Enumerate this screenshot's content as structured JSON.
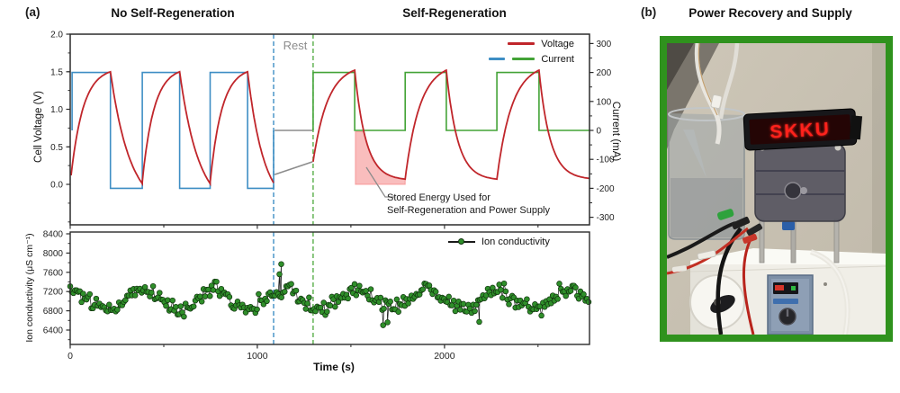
{
  "panel_a": {
    "label": "(a)",
    "titles": {
      "left": "No Self-Regeneration",
      "right": "Self-Regeneration"
    },
    "rest_label": "Rest",
    "legend": {
      "voltage": "Voltage",
      "current": "Current",
      "ion": "Ion conductivity"
    },
    "axis_labels": {
      "cell_voltage": "Cell Voltage (V)",
      "current": "Current (mA)",
      "ion_conductivity": "Ion conductivity (μS cm⁻¹)",
      "time": "Time (s)"
    },
    "annotation_line1": "Stored Energy Used for",
    "annotation_line2": "Self-Regeneration and Power Supply"
  },
  "panel_b": {
    "label": "(b)",
    "title": "Power Recovery and Supply",
    "photo": {
      "led_text": "SKKU"
    }
  },
  "colors": {
    "voltage_red": "#c0262b",
    "current_blue": "#3e8ec4",
    "current_green": "#43a337",
    "rest_gray": "#8c8c8c",
    "dashed_blue": "#3e8ec4",
    "dashed_green": "#57ae48",
    "shade_pink": "#f47c7c",
    "scatter_green": "#2f8f2a",
    "scatter_edge": "#11330e",
    "axis_dark": "#2b2b2b",
    "photo_border_green": "#2f921d"
  },
  "chart_data": [
    {
      "id": "voltage-current",
      "type": "line",
      "x_range_s": [
        0,
        2775
      ],
      "left_axis": {
        "label": "Cell Voltage (V)",
        "ticks": [
          2.0,
          1.5,
          1.0,
          0.5,
          0.0
        ],
        "minor_step": 0.25,
        "range": [
          -0.54,
          2.0
        ]
      },
      "right_axis": {
        "label": "Current (mA)",
        "ticks": [
          300,
          200,
          100,
          0,
          -100,
          -200,
          -300
        ],
        "minor_step": 50,
        "range": [
          -326,
          332
        ]
      },
      "legend": [
        {
          "label": "Voltage",
          "swatch": "red-line"
        },
        {
          "label": "Current",
          "swatch": "blue-green-line"
        }
      ],
      "rest": {
        "label": "Rest",
        "window_s": [
          1087,
          1298
        ],
        "voltage_v": {
          "t0": 1092,
          "t1": 1295,
          "v0": 0.13,
          "v1": 0.3
        },
        "current_mA": 0
      },
      "series": {
        "current_no_regen_mA": [
          [
            10,
            0
          ],
          [
            10,
            200
          ],
          [
            215,
            200
          ],
          [
            215,
            -200
          ],
          [
            385,
            -200
          ],
          [
            385,
            200
          ],
          [
            585,
            200
          ],
          [
            585,
            -200
          ],
          [
            748,
            -200
          ],
          [
            748,
            200
          ],
          [
            948,
            200
          ],
          [
            948,
            -200
          ],
          [
            1087,
            -200
          ],
          [
            1087,
            0
          ]
        ],
        "current_regen_mA": [
          [
            1298,
            0
          ],
          [
            1298,
            200
          ],
          [
            1520,
            200
          ],
          [
            1520,
            0
          ],
          [
            1790,
            0
          ],
          [
            1790,
            200
          ],
          [
            2010,
            200
          ],
          [
            2010,
            0
          ],
          [
            2280,
            0
          ],
          [
            2280,
            200
          ],
          [
            2505,
            200
          ],
          [
            2505,
            0
          ],
          [
            2775,
            0
          ]
        ],
        "voltage_no_regen_phases": [
          {
            "t0": 5,
            "t1": 215,
            "v0": 0.12,
            "v1": 1.5,
            "k": 3.2
          },
          {
            "t0": 215,
            "t1": 385,
            "v0": 1.5,
            "v1": 0.01,
            "k": 1.6
          },
          {
            "t0": 385,
            "t1": 585,
            "v0": 0.03,
            "v1": 1.5,
            "k": 3.2
          },
          {
            "t0": 585,
            "t1": 748,
            "v0": 1.5,
            "v1": 0.01,
            "k": 1.6
          },
          {
            "t0": 748,
            "t1": 948,
            "v0": 0.03,
            "v1": 1.5,
            "k": 3.2
          },
          {
            "t0": 948,
            "t1": 1087,
            "v0": 1.5,
            "v1": 0.02,
            "k": 1.6
          }
        ],
        "voltage_regen_phases": [
          {
            "t0": 1298,
            "t1": 1520,
            "v0": 0.3,
            "v1": 1.52,
            "k": 2.8
          },
          {
            "t0": 1520,
            "t1": 1790,
            "v0": 1.52,
            "v1": 0.07,
            "k": 4.5
          },
          {
            "t0": 1790,
            "t1": 2010,
            "v0": 0.07,
            "v1": 1.52,
            "k": 2.8
          },
          {
            "t0": 2010,
            "t1": 2280,
            "v0": 1.52,
            "v1": 0.07,
            "k": 4.5
          },
          {
            "t0": 2280,
            "t1": 2505,
            "v0": 0.07,
            "v1": 1.52,
            "k": 2.8
          },
          {
            "t0": 2505,
            "t1": 2775,
            "v0": 1.52,
            "v1": 0.08,
            "k": 4.5
          }
        ]
      },
      "shaded_region": {
        "t0": 1524,
        "t1": 1790,
        "cap_v": 0.7,
        "baseline_v": 0.0,
        "annotation": [
          "Stored Energy Used for",
          "Self-Regeneration and Power Supply"
        ]
      }
    },
    {
      "id": "ion-conductivity",
      "type": "scatter",
      "ylabel": "Ion conductivity (μS cm⁻¹)",
      "xlabel": "Time (s)",
      "y_ticks": [
        8400,
        8000,
        7600,
        7200,
        6800,
        6400
      ],
      "y_minor_step": 200,
      "y_range": [
        6100,
        8440
      ],
      "x_major_ticks": [
        0,
        1000,
        2000
      ],
      "x_minor_ticks": [
        500,
        1500,
        2500
      ],
      "legend_label": "Ion conductivity",
      "pattern": {
        "n": 320,
        "t_max": 2770,
        "mean_uS_cm": 7040,
        "wave_amplitude": 185,
        "wave_period_s": 380,
        "wave_phase_s": 90,
        "noise_sd": 85,
        "seed": 13
      },
      "outliers": [
        [
          1118,
          7560
        ],
        [
          1128,
          7770
        ],
        [
          1672,
          6500
        ],
        [
          1696,
          6560
        ],
        [
          2186,
          6570
        ]
      ]
    }
  ]
}
